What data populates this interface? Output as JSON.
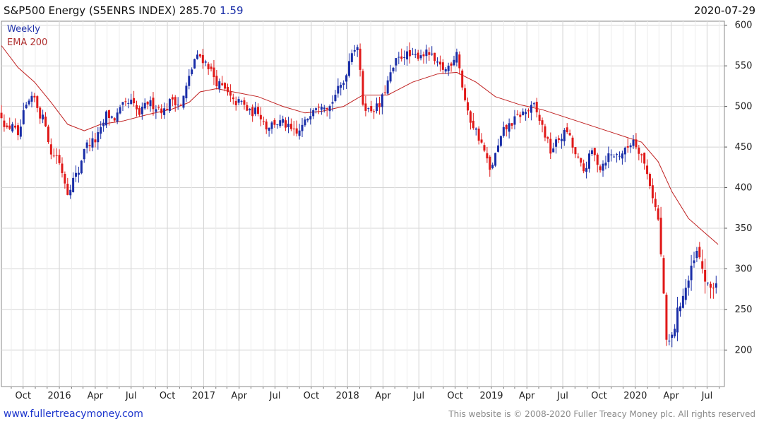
{
  "header": {
    "title": "S&P500 Energy (S5ENRS INDEX) 285.70",
    "change": "1.59",
    "date": "2020-07-29"
  },
  "legend": {
    "weekly": "Weekly",
    "ema": "EMA 200"
  },
  "footer": {
    "website": "www.fullertreacymoney.com",
    "copyright": "This website is © 2008-2020 Fuller Treacy Money plc. All rights reserved"
  },
  "colors": {
    "up": "#1a2ea8",
    "down": "#e01818",
    "ema": "#c02020",
    "grid": "#d4d4d4",
    "change": "#1a2ea8",
    "website": "#1a33cc"
  },
  "chart_data": {
    "type": "candlestick",
    "y_axis_position": "right",
    "ylim": [
      155,
      605
    ],
    "y_ticks": [
      200,
      250,
      300,
      350,
      400,
      450,
      500,
      550,
      600
    ],
    "x_range": [
      "2015-08-07",
      "2020-08-14"
    ],
    "x_ticks": [
      {
        "label": "Oct",
        "date": "2015-10-01"
      },
      {
        "label": "2016",
        "date": "2016-01-01"
      },
      {
        "label": "Apr",
        "date": "2016-04-01"
      },
      {
        "label": "Jul",
        "date": "2016-07-01"
      },
      {
        "label": "Oct",
        "date": "2016-10-01"
      },
      {
        "label": "2017",
        "date": "2017-01-01"
      },
      {
        "label": "Apr",
        "date": "2017-04-01"
      },
      {
        "label": "Jul",
        "date": "2017-07-01"
      },
      {
        "label": "Oct",
        "date": "2017-10-01"
      },
      {
        "label": "2018",
        "date": "2018-01-01"
      },
      {
        "label": "Apr",
        "date": "2018-04-01"
      },
      {
        "label": "Jul",
        "date": "2018-07-01"
      },
      {
        "label": "Oct",
        "date": "2018-10-01"
      },
      {
        "label": "2019",
        "date": "2019-01-01"
      },
      {
        "label": "Apr",
        "date": "2019-04-01"
      },
      {
        "label": "Jul",
        "date": "2019-07-01"
      },
      {
        "label": "Oct",
        "date": "2019-10-01"
      },
      {
        "label": "2020",
        "date": "2020-01-01"
      },
      {
        "label": "Apr",
        "date": "2020-04-01"
      },
      {
        "label": "Jul",
        "date": "2020-07-01"
      }
    ],
    "price_path": [
      [
        "2015-08-07",
        490
      ],
      [
        "2015-08-21",
        470
      ],
      [
        "2015-09-04",
        480
      ],
      [
        "2015-09-18",
        460
      ],
      [
        "2015-10-02",
        490
      ],
      [
        "2015-10-16",
        505
      ],
      [
        "2015-10-30",
        510
      ],
      [
        "2015-11-13",
        490
      ],
      [
        "2015-11-27",
        480
      ],
      [
        "2015-12-11",
        440
      ],
      [
        "2015-12-25",
        440
      ],
      [
        "2016-01-08",
        420
      ],
      [
        "2016-01-22",
        395
      ],
      [
        "2016-02-05",
        410
      ],
      [
        "2016-02-19",
        420
      ],
      [
        "2016-03-04",
        450
      ],
      [
        "2016-03-18",
        455
      ],
      [
        "2016-04-01",
        458
      ],
      [
        "2016-04-15",
        470
      ],
      [
        "2016-04-29",
        490
      ],
      [
        "2016-05-20",
        485
      ],
      [
        "2016-06-10",
        500
      ],
      [
        "2016-07-01",
        505
      ],
      [
        "2016-07-22",
        490
      ],
      [
        "2016-08-12",
        505
      ],
      [
        "2016-09-02",
        500
      ],
      [
        "2016-09-23",
        495
      ],
      [
        "2016-10-14",
        510
      ],
      [
        "2016-11-04",
        500
      ],
      [
        "2016-11-25",
        535
      ],
      [
        "2016-12-09",
        558
      ],
      [
        "2016-12-23",
        562
      ],
      [
        "2017-01-13",
        550
      ],
      [
        "2017-02-03",
        530
      ],
      [
        "2017-02-24",
        520
      ],
      [
        "2017-03-17",
        505
      ],
      [
        "2017-04-07",
        505
      ],
      [
        "2017-04-28",
        492
      ],
      [
        "2017-05-19",
        495
      ],
      [
        "2017-06-09",
        475
      ],
      [
        "2017-06-30",
        480
      ],
      [
        "2017-07-21",
        480
      ],
      [
        "2017-08-11",
        470
      ],
      [
        "2017-08-25",
        465
      ],
      [
        "2017-09-15",
        480
      ],
      [
        "2017-10-06",
        500
      ],
      [
        "2017-10-27",
        505
      ],
      [
        "2017-11-17",
        500
      ],
      [
        "2017-12-01",
        515
      ],
      [
        "2017-12-22",
        530
      ],
      [
        "2018-01-12",
        570
      ],
      [
        "2018-01-26",
        575
      ],
      [
        "2018-02-09",
        505
      ],
      [
        "2018-02-23",
        495
      ],
      [
        "2018-03-09",
        498
      ],
      [
        "2018-03-23",
        500
      ],
      [
        "2018-04-13",
        530
      ],
      [
        "2018-05-04",
        555
      ],
      [
        "2018-05-25",
        565
      ],
      [
        "2018-06-15",
        560
      ],
      [
        "2018-07-06",
        565
      ],
      [
        "2018-07-27",
        565
      ],
      [
        "2018-08-17",
        550
      ],
      [
        "2018-09-07",
        545
      ],
      [
        "2018-09-28",
        560
      ],
      [
        "2018-10-05",
        570
      ],
      [
        "2018-10-19",
        525
      ],
      [
        "2018-11-02",
        490
      ],
      [
        "2018-11-23",
        470
      ],
      [
        "2018-12-14",
        445
      ],
      [
        "2018-12-28",
        420
      ],
      [
        "2019-01-11",
        440
      ],
      [
        "2019-02-01",
        470
      ],
      [
        "2019-02-22",
        480
      ],
      [
        "2019-03-15",
        490
      ],
      [
        "2019-04-05",
        495
      ],
      [
        "2019-04-19",
        500
      ],
      [
        "2019-05-10",
        475
      ],
      [
        "2019-05-31",
        445
      ],
      [
        "2019-06-21",
        460
      ],
      [
        "2019-07-12",
        470
      ],
      [
        "2019-08-02",
        440
      ],
      [
        "2019-08-23",
        420
      ],
      [
        "2019-09-13",
        445
      ],
      [
        "2019-10-04",
        425
      ],
      [
        "2019-10-25",
        440
      ],
      [
        "2019-11-15",
        440
      ],
      [
        "2019-12-06",
        445
      ],
      [
        "2019-12-27",
        460
      ],
      [
        "2020-01-17",
        440
      ],
      [
        "2020-02-07",
        405
      ],
      [
        "2020-02-28",
        360
      ],
      [
        "2020-03-13",
        270
      ],
      [
        "2020-03-20",
        205
      ],
      [
        "2020-04-03",
        215
      ],
      [
        "2020-04-24",
        260
      ],
      [
        "2020-05-15",
        285
      ],
      [
        "2020-06-05",
        320
      ],
      [
        "2020-06-19",
        300
      ],
      [
        "2020-07-03",
        275
      ],
      [
        "2020-07-17",
        280
      ],
      [
        "2020-07-29",
        285.7
      ]
    ],
    "ema_line": [
      [
        "2015-08-07",
        575
      ],
      [
        "2015-09-18",
        548
      ],
      [
        "2015-10-30",
        530
      ],
      [
        "2015-12-11",
        505
      ],
      [
        "2016-01-22",
        478
      ],
      [
        "2016-03-04",
        470
      ],
      [
        "2016-04-15",
        478
      ],
      [
        "2016-06-10",
        482
      ],
      [
        "2016-08-12",
        490
      ],
      [
        "2016-10-14",
        497
      ],
      [
        "2016-11-25",
        505
      ],
      [
        "2016-12-23",
        518
      ],
      [
        "2017-02-03",
        522
      ],
      [
        "2017-03-17",
        518
      ],
      [
        "2017-05-19",
        512
      ],
      [
        "2017-07-21",
        500
      ],
      [
        "2017-09-15",
        492
      ],
      [
        "2017-10-27",
        494
      ],
      [
        "2017-12-22",
        500
      ],
      [
        "2018-02-09",
        514
      ],
      [
        "2018-04-13",
        514
      ],
      [
        "2018-06-15",
        530
      ],
      [
        "2018-08-17",
        540
      ],
      [
        "2018-10-05",
        542
      ],
      [
        "2018-11-23",
        530
      ],
      [
        "2019-01-11",
        512
      ],
      [
        "2019-03-15",
        502
      ],
      [
        "2019-05-10",
        496
      ],
      [
        "2019-07-12",
        486
      ],
      [
        "2019-09-13",
        476
      ],
      [
        "2019-11-15",
        466
      ],
      [
        "2020-01-17",
        456
      ],
      [
        "2020-02-28",
        432
      ],
      [
        "2020-04-03",
        395
      ],
      [
        "2020-05-15",
        362
      ],
      [
        "2020-06-19",
        347
      ],
      [
        "2020-07-29",
        330
      ]
    ],
    "noise_amplitude": 11
  }
}
